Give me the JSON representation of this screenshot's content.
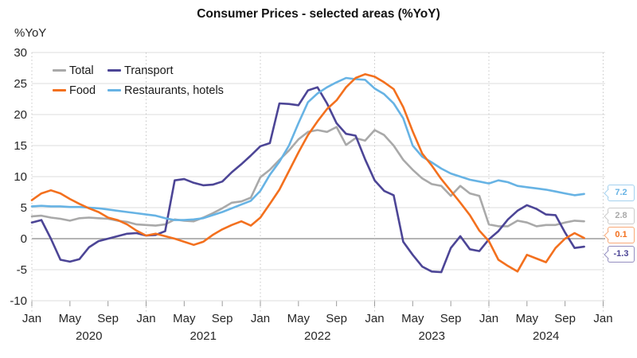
{
  "title": "Consumer Prices - selected areas (%YoY)",
  "y_axis_label": "%YoY",
  "chart_data": {
    "type": "line",
    "x_unit": "month",
    "x_start": "Jan 2020",
    "x_end": "Nov 2024",
    "ylim": [
      -10,
      30
    ],
    "y_ticks": [
      30,
      25,
      20,
      15,
      10,
      5,
      0,
      -5,
      -10
    ],
    "x_tick_months": [
      0,
      4,
      8,
      12,
      16,
      20,
      24,
      28,
      32,
      36,
      40,
      44,
      48,
      52,
      56,
      60
    ],
    "x_tick_label_cycle": [
      "Jan",
      "May",
      "Sep"
    ],
    "x_major_gridline_months": [
      0,
      12,
      24,
      36,
      48,
      60
    ],
    "year_labels": [
      {
        "label": "2020",
        "month": 6
      },
      {
        "label": "2021",
        "month": 18
      },
      {
        "label": "2022",
        "month": 30
      },
      {
        "label": "2023",
        "month": 42
      },
      {
        "label": "2024",
        "month": 54
      }
    ],
    "grid": {
      "horizontal": "solid-light",
      "vertical": "dotted-at-january",
      "zero_line": "solid-gray"
    },
    "legend_position": "top-left-inside",
    "series": [
      {
        "name": "Total",
        "color": "#a9a9a9",
        "end_label": "2.8",
        "values": [
          3.6,
          3.7,
          3.4,
          3.2,
          2.9,
          3.3,
          3.4,
          3.3,
          3.2,
          2.9,
          2.7,
          2.3,
          2.2,
          2.1,
          2.3,
          3.1,
          2.9,
          2.8,
          3.4,
          4.1,
          4.9,
          5.8,
          6.0,
          6.6,
          9.9,
          11.1,
          12.7,
          14.2,
          16.0,
          17.2,
          17.5,
          17.2,
          18.0,
          15.1,
          16.2,
          15.8,
          17.5,
          16.7,
          15.0,
          12.7,
          11.1,
          9.7,
          8.8,
          8.5,
          6.9,
          8.5,
          7.3,
          6.9,
          2.3,
          2.0,
          2.0,
          2.9,
          2.6,
          2.0,
          2.2,
          2.2,
          2.6,
          2.9,
          2.8
        ]
      },
      {
        "name": "Transport",
        "color": "#4c4596",
        "end_label": "-1.3",
        "values": [
          2.6,
          3.0,
          0.0,
          -3.4,
          -3.7,
          -3.3,
          -1.4,
          -0.4,
          0.0,
          0.4,
          0.8,
          0.9,
          0.5,
          0.6,
          1.2,
          9.4,
          9.6,
          9.0,
          8.6,
          8.7,
          9.2,
          10.7,
          12.0,
          13.4,
          14.9,
          15.4,
          21.8,
          21.7,
          21.5,
          23.9,
          24.4,
          21.8,
          18.6,
          16.9,
          16.6,
          12.8,
          9.4,
          7.7,
          7.0,
          -0.5,
          -2.6,
          -4.5,
          -5.3,
          -5.4,
          -1.5,
          0.4,
          -1.7,
          -2.0,
          -0.1,
          1.2,
          3.1,
          4.5,
          5.4,
          4.8,
          3.9,
          3.8,
          1.0,
          -1.5,
          -1.3
        ]
      },
      {
        "name": "Food",
        "color": "#f3701e",
        "end_label": "0.1",
        "values": [
          6.2,
          7.3,
          7.8,
          7.3,
          6.4,
          5.6,
          4.9,
          4.3,
          3.4,
          3.0,
          2.3,
          1.3,
          0.5,
          0.8,
          0.4,
          0.0,
          -0.5,
          -1.0,
          -0.5,
          0.6,
          1.5,
          2.2,
          2.8,
          2.1,
          3.4,
          5.6,
          7.9,
          10.9,
          13.9,
          16.7,
          18.9,
          20.9,
          22.3,
          24.4,
          25.9,
          26.5,
          26.1,
          25.2,
          24.1,
          21.2,
          17.3,
          13.7,
          11.8,
          9.6,
          7.7,
          5.8,
          3.8,
          1.3,
          -0.4,
          -3.4,
          -4.4,
          -5.3,
          -2.6,
          -3.2,
          -3.8,
          -1.5,
          0.0,
          0.9,
          0.1
        ]
      },
      {
        "name": "Restaurants, hotels",
        "color": "#67b3e4",
        "end_label": "7.2",
        "values": [
          5.2,
          5.3,
          5.2,
          5.2,
          5.1,
          5.1,
          5.0,
          4.9,
          4.7,
          4.5,
          4.3,
          4.1,
          3.9,
          3.7,
          3.3,
          3.0,
          3.0,
          3.1,
          3.3,
          3.8,
          4.3,
          4.9,
          5.5,
          6.1,
          7.7,
          10.3,
          12.4,
          15.0,
          18.6,
          22.0,
          23.4,
          24.4,
          25.2,
          25.9,
          25.7,
          25.6,
          24.2,
          23.3,
          21.8,
          19.4,
          15.0,
          13.2,
          12.3,
          11.3,
          10.5,
          10.0,
          9.5,
          9.2,
          8.9,
          9.4,
          9.1,
          8.5,
          8.3,
          8.1,
          7.9,
          7.6,
          7.3,
          7.0,
          7.2
        ]
      }
    ]
  },
  "colors": {
    "grid": "#dcdcdc",
    "zero_line": "#9b9b9b",
    "dotted_vertical": "#c6c6c6",
    "axis_text": "#262626"
  }
}
